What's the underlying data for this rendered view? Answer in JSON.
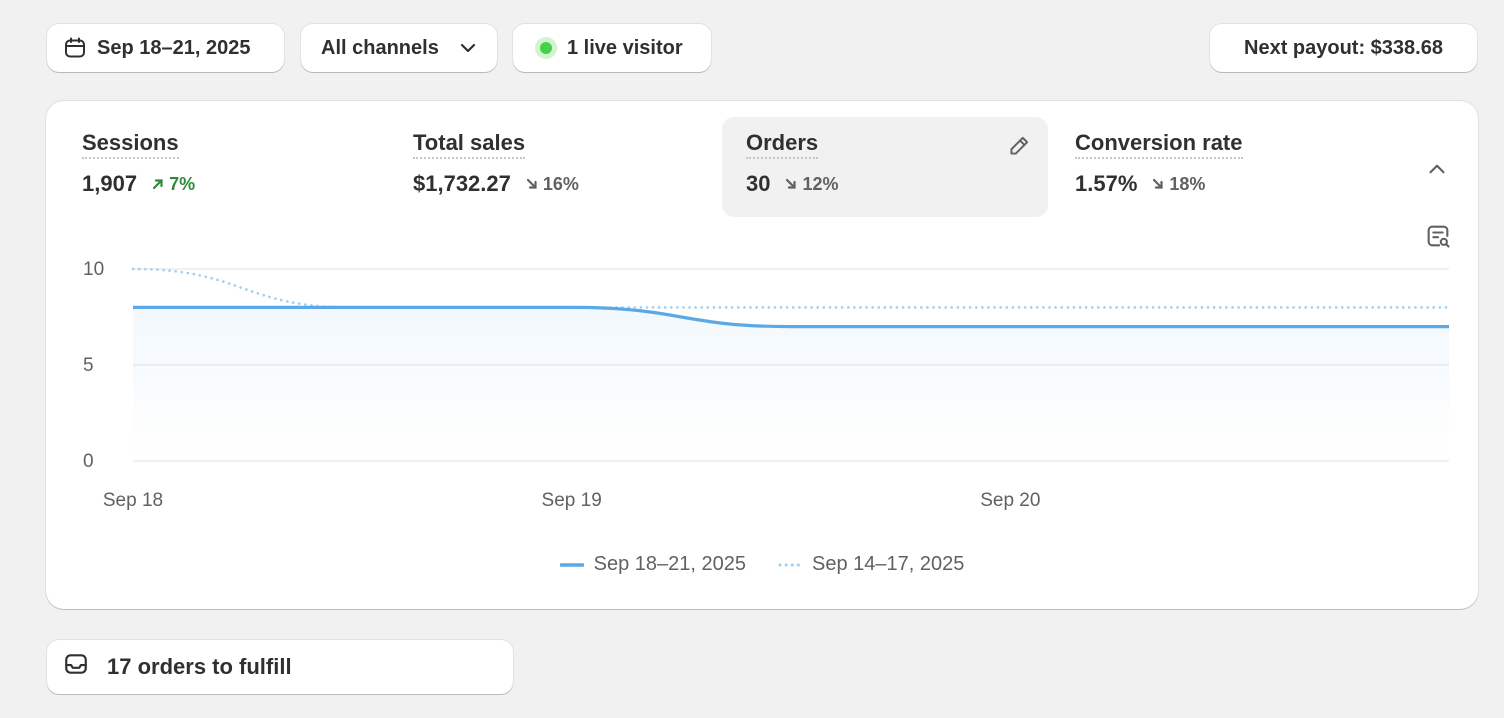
{
  "toolbar": {
    "date_range": "Sep 18–21, 2025",
    "channels": "All channels",
    "live_visitors": "1 live visitor",
    "payout": "Next payout: $338.68"
  },
  "metrics": [
    {
      "label": "Sessions",
      "value": "1,907",
      "change": "7%",
      "direction": "up"
    },
    {
      "label": "Total sales",
      "value": "$1,732.27",
      "change": "16%",
      "direction": "down"
    },
    {
      "label": "Orders",
      "value": "30",
      "change": "12%",
      "direction": "down",
      "selected": true
    },
    {
      "label": "Conversion rate",
      "value": "1.57%",
      "change": "18%",
      "direction": "down"
    }
  ],
  "chart_data": {
    "type": "line",
    "ylim": [
      0,
      10
    ],
    "y_ticks": [
      "10",
      "5",
      "0"
    ],
    "x_ticks": [
      "Sep 18",
      "Sep 19",
      "Sep 20"
    ],
    "grid": true,
    "legend_position": "bottom-center",
    "series": [
      {
        "name": "Sep 18–21, 2025",
        "style": "solid",
        "color": "#5aa9e6",
        "x": [
          0,
          0.5,
          1,
          1.5,
          2,
          2.5,
          3
        ],
        "y": [
          8,
          8,
          8,
          7,
          7,
          7,
          7
        ]
      },
      {
        "name": "Sep 14–17, 2025",
        "style": "dotted",
        "color": "#9ecff0",
        "x": [
          0,
          0.5,
          1,
          1.5,
          2,
          2.5,
          3
        ],
        "y": [
          10,
          8,
          8,
          8,
          8,
          8,
          8
        ]
      }
    ]
  },
  "tasks": {
    "fulfill": "17 orders to fulfill"
  },
  "colors": {
    "accent": "#5aa9e6",
    "positive": "#2f8a3c",
    "live": "#42d24b"
  },
  "icons": {
    "date": "calendar-icon",
    "dropdown": "chevron-down-icon",
    "edit": "pencil-icon",
    "collapse": "chevron-up-icon",
    "chart_search": "chart-search-icon",
    "fulfill": "inbox-icon"
  }
}
